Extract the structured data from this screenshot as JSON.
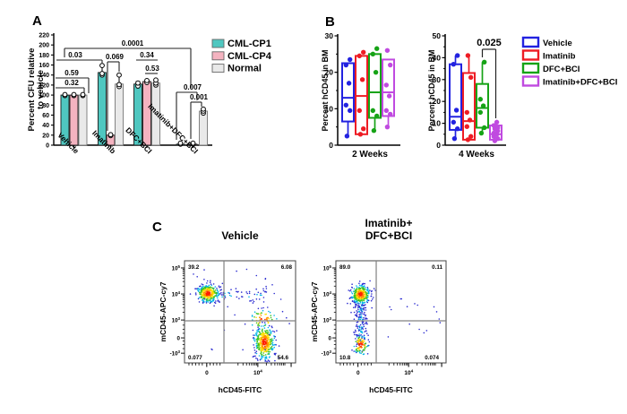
{
  "figure": {
    "panel_labels": {
      "a": "A",
      "b": "B",
      "c": "C"
    },
    "colors": {
      "cml_cp1": "#4fc7c0",
      "cml_cp4": "#f4b3c0",
      "normal": "#e9e9e9",
      "vehicle": "#2222e0",
      "imatinib": "#ee1c24",
      "dfc_bci": "#16a316",
      "imatinib_dfc_bci": "#c04ae0"
    }
  },
  "chart_data": [
    {
      "id": "panel_a_bars",
      "type": "bar",
      "panel_label": "A",
      "title": "",
      "ylabel_lines": [
        "Percent CFU relative",
        "to vehicle"
      ],
      "ylim": [
        0,
        220
      ],
      "yticks": [
        0,
        20,
        40,
        60,
        80,
        100,
        120,
        140,
        160,
        180,
        200,
        220
      ],
      "categories": [
        "Vehicle",
        "Imatinib",
        "DFC+BCI",
        "Imatinib+DFC+BCI"
      ],
      "legend_position": "right-top",
      "series": [
        {
          "name": "CML-CP1",
          "color": "#4fc7c0",
          "stroke": "#1a1a1a",
          "values": [
            100,
            145,
            122,
            2
          ],
          "whisker_top": [
            103,
            160,
            127,
            4
          ],
          "points": [
            [
              99,
              101
            ],
            [
              140,
              143,
              159
            ],
            [
              118,
              124
            ],
            [
              2,
              4
            ]
          ]
        },
        {
          "name": "CML-CP4",
          "color": "#f4b3c0",
          "stroke": "#1a1a1a",
          "values": [
            100,
            20,
            127,
            2
          ],
          "whisker_top": [
            103,
            23,
            131,
            4
          ],
          "points": [
            [
              99,
              101
            ],
            [
              19,
              21
            ],
            [
              125,
              129
            ],
            [
              2,
              4
            ]
          ]
        },
        {
          "name": "Normal",
          "color": "#e9e9e9",
          "stroke": "#777777",
          "values": [
            100,
            122,
            124,
            68
          ],
          "whisker_top": [
            103,
            140,
            131,
            74
          ],
          "points": [
            [
              99,
              101
            ],
            [
              117,
              121,
              140
            ],
            [
              120,
              124,
              130
            ],
            [
              64,
              68,
              72
            ]
          ]
        }
      ],
      "sig_annotations": [
        {
          "text": "0.0001",
          "tx": 148,
          "ty": 51,
          "h": [
            72,
            213,
            54
          ],
          "v1": [
            72,
            54,
            64
          ],
          "v2": [
            213,
            54,
            98
          ]
        },
        {
          "text": "0.03",
          "tx": 84,
          "ty": 64,
          "h": [
            63,
            114,
            67
          ],
          "v2": [
            114,
            67,
            71
          ]
        },
        {
          "text": "0.59",
          "tx": 80,
          "ty": 84,
          "h": [
            62,
            99,
            87
          ],
          "v2": [
            99,
            87,
            104
          ]
        },
        {
          "text": "0.32",
          "tx": 80,
          "ty": 95,
          "h": [
            62,
            94,
            98
          ],
          "v2": [
            94,
            98,
            104
          ]
        },
        {
          "text": "0.069",
          "tx": 128,
          "ty": 66,
          "h": [
            120,
            133,
            69
          ],
          "v1": [
            120,
            69,
            146
          ],
          "v2": [
            133,
            69,
            80
          ]
        },
        {
          "text": "0.34",
          "tx": 164,
          "ty": 64,
          "h": [
            152,
            176,
            67
          ]
        },
        {
          "text": "0.53",
          "tx": 170,
          "ty": 79,
          "h": [
            162,
            176,
            82
          ]
        },
        {
          "text": "0.007",
          "tx": 215,
          "ty": 100,
          "h": [
            197,
            220,
            103
          ],
          "v1": [
            197,
            103,
            156
          ],
          "v2": [
            220,
            103,
            112
          ]
        },
        {
          "text": "0.001",
          "tx": 222,
          "ty": 111,
          "h": [
            213,
            225,
            114
          ],
          "v1": [
            213,
            114,
            155
          ],
          "v2": [
            225,
            114,
            119
          ]
        }
      ]
    },
    {
      "id": "panel_b_2weeks",
      "type": "boxplot",
      "panel_label": "B",
      "xlabel": "2 Weeks",
      "ylabel": "Percent hCD45 in BM",
      "ylim": [
        0,
        30
      ],
      "yticks": [
        0,
        10,
        20,
        30
      ],
      "yticks_minor": [
        5,
        15,
        25
      ],
      "groups": [
        "Vehicle",
        "Imatinib",
        "DFC+BCI",
        "Imatinib+DFC+BCI"
      ],
      "boxes": [
        {
          "group": "Vehicle",
          "color": "#2222e0",
          "lo": 2.5,
          "q1": 6.5,
          "median": 13,
          "q3": 22.5,
          "hi": 22.5,
          "points": [
            2.5,
            9.5,
            11,
            17,
            22,
            23.5
          ]
        },
        {
          "group": "Imatinib",
          "color": "#ee1c24",
          "lo": 3,
          "q1": 3,
          "median": 13.5,
          "q3": 24.5,
          "hi": 24.5,
          "points": [
            3,
            4.5,
            9.5,
            18,
            24.5,
            25.5
          ]
        },
        {
          "group": "DFC+BCI",
          "color": "#16a316",
          "lo": 4,
          "q1": 7.5,
          "median": 14.5,
          "q3": 25,
          "hi": 25,
          "points": [
            4,
            8,
            9.5,
            20,
            25,
            26.5
          ]
        },
        {
          "group": "Imatinib+DFC+BCI",
          "color": "#c04ae0",
          "lo": 5,
          "q1": 8,
          "median": 14.5,
          "q3": 23.5,
          "hi": 23.5,
          "points": [
            5,
            8.5,
            9.5,
            13.5,
            16.5,
            22,
            26
          ]
        }
      ]
    },
    {
      "id": "panel_b_4weeks",
      "type": "boxplot",
      "panel_label": "B",
      "xlabel": "4 Weeks",
      "ylabel": "Percent hCD45 in BM",
      "ylim": [
        0,
        50
      ],
      "yticks": [
        0,
        10,
        20,
        30,
        40,
        50
      ],
      "yticks_minor": [
        5,
        15,
        25,
        35,
        45
      ],
      "groups": [
        "Vehicle",
        "Imatinib",
        "DFC+BCI",
        "Imatinib+DFC+BCI"
      ],
      "sig_annotation": {
        "text": "0.025",
        "between": [
          "DFC+BCI",
          "Imatinib+DFC+BCI"
        ]
      },
      "boxes": [
        {
          "group": "Vehicle",
          "color": "#2222e0",
          "lo": 3,
          "q1": 7,
          "median": 13,
          "q3": 37,
          "hi": 41,
          "points": [
            3,
            7.5,
            10.5,
            16,
            37,
            41
          ]
        },
        {
          "group": "Imatinib",
          "color": "#ee1c24",
          "lo": 2.5,
          "q1": 2.5,
          "median": 11,
          "q3": 33,
          "hi": 41,
          "points": [
            2.5,
            4,
            8.5,
            11.5,
            15,
            31,
            41
          ]
        },
        {
          "group": "DFC+BCI",
          "color": "#16a316",
          "lo": 5.5,
          "q1": 8,
          "median": 17,
          "q3": 28,
          "hi": 38,
          "points": [
            5.5,
            8,
            15,
            18,
            21,
            38
          ]
        },
        {
          "group": "Imatinib+DFC+BCI",
          "color": "#c04ae0",
          "lo": 1.5,
          "q1": 2.5,
          "median": 5,
          "q3": 9,
          "hi": 10.5,
          "points": [
            2,
            3,
            4,
            5,
            5.5,
            6.5,
            7.5,
            8,
            9,
            10.5
          ]
        }
      ]
    },
    {
      "id": "panel_c_vehicle",
      "type": "scatter",
      "panel_label": "C",
      "title_lines": [
        "Vehicle"
      ],
      "xlabel": "hCD45-FITC",
      "ylabel": "mCD45-APC-cy7",
      "yticks": [
        {
          "base": "10",
          "sup": "5"
        },
        {
          "base": "10",
          "sup": "4"
        },
        {
          "base": "10",
          "sup": "3"
        },
        {
          "base": "0"
        },
        {
          "base": "-10",
          "sup": "3"
        }
      ],
      "xticks": [
        {
          "base": "0"
        },
        {
          "base": "10",
          "sup": "4"
        }
      ],
      "quadrant_values": {
        "top_left": "39.2",
        "top_right": "6.08",
        "bottom_left": "0.077",
        "bottom_right": "54.6"
      },
      "clusters": [
        {
          "type": "gauss",
          "cx": 0.21,
          "cy": 0.32,
          "sx": 0.05,
          "sy": 0.042,
          "n": 330
        },
        {
          "type": "hband",
          "x1": 0.28,
          "x2": 0.74,
          "cy": 0.33,
          "sy": 0.04,
          "n": 55
        },
        {
          "type": "gauss",
          "cx": 0.72,
          "cy": 0.8,
          "sx": 0.045,
          "sy": 0.085,
          "n": 390
        },
        {
          "type": "gauss",
          "cx": 0.71,
          "cy": 0.57,
          "sx": 0.06,
          "sy": 0.05,
          "n": 55
        },
        {
          "type": "uniform",
          "x1": 0.05,
          "x2": 0.95,
          "y1": 0.05,
          "y2": 0.95,
          "n": 30
        }
      ]
    },
    {
      "id": "panel_c_treated",
      "type": "scatter",
      "panel_label": "C",
      "title_lines": [
        "Imatinib+",
        "DFC+BCI"
      ],
      "xlabel": "hCD45-FITC",
      "ylabel": "mCD45-APC-cy7",
      "yticks": [
        {
          "base": "10",
          "sup": "5"
        },
        {
          "base": "10",
          "sup": "4"
        },
        {
          "base": "10",
          "sup": "3"
        },
        {
          "base": "0"
        },
        {
          "base": "-10",
          "sup": "3"
        }
      ],
      "xticks": [
        {
          "base": "0"
        },
        {
          "base": "10",
          "sup": "4"
        }
      ],
      "quadrant_values": {
        "top_left": "89.0",
        "top_right": "0.11",
        "bottom_left": "10.8",
        "bottom_right": "0.074"
      },
      "clusters": [
        {
          "type": "gauss",
          "cx": 0.225,
          "cy": 0.33,
          "sx": 0.042,
          "sy": 0.045,
          "n": 350
        },
        {
          "type": "vband",
          "cx": 0.225,
          "y1": 0.42,
          "y2": 0.9,
          "sx": 0.03,
          "n": 170
        },
        {
          "type": "gauss",
          "cx": 0.225,
          "cy": 0.82,
          "sx": 0.035,
          "sy": 0.05,
          "n": 90
        },
        {
          "type": "uniform",
          "x1": 0.45,
          "x2": 0.95,
          "y1": 0.35,
          "y2": 0.75,
          "n": 16
        }
      ]
    }
  ],
  "legend_a": [
    {
      "label": "CML-CP1",
      "color": "#4fc7c0"
    },
    {
      "label": "CML-CP4",
      "color": "#f4b3c0"
    },
    {
      "label": "Normal",
      "color": "#e9e9e9"
    }
  ],
  "legend_b": [
    {
      "label": "Vehicle",
      "color": "#2222e0"
    },
    {
      "label": "Imatinib",
      "color": "#ee1c24"
    },
    {
      "label": "DFC+BCI",
      "color": "#16a316"
    },
    {
      "label": "Imatinib+DFC+BCI",
      "color": "#c04ae0"
    }
  ]
}
